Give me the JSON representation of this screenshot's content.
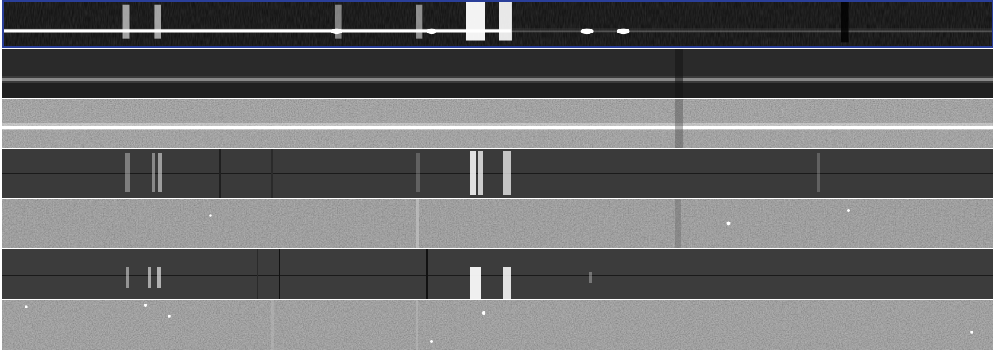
{
  "viewer": {
    "highlight_color": "#2a3f9a",
    "separator_color": "#ffffff",
    "panels": [
      {
        "id": "extracted-spectrum",
        "kind": "bright-trace-with-emission-lines",
        "selected": true,
        "background": "#0b0b0b",
        "trace_color": "#ffffff"
      },
      {
        "id": "trace-dark",
        "kind": "faint-continuum-trace",
        "selected": false,
        "background": "#262626",
        "trace_color": "#8a8a8a"
      },
      {
        "id": "trace-noisy-bright",
        "kind": "bright-continuum-trace-on-noise",
        "selected": false,
        "background": "#8c8c8c",
        "trace_color": "#ffffff"
      },
      {
        "id": "sky-frame-1",
        "kind": "sky-lines",
        "selected": false,
        "background": "#3a3a3a",
        "trace_color": "#dcdcdc"
      },
      {
        "id": "residual-1",
        "kind": "noise-residual",
        "selected": false,
        "background": "#8a8a8a",
        "trace_color": "#b4b4b4"
      },
      {
        "id": "sky-frame-2",
        "kind": "sky-lines",
        "selected": false,
        "background": "#3d3d3d",
        "trace_color": "#e6e6e6"
      },
      {
        "id": "residual-2",
        "kind": "noise-residual",
        "selected": false,
        "background": "#858585",
        "trace_color": "#b0b0b0"
      }
    ]
  }
}
